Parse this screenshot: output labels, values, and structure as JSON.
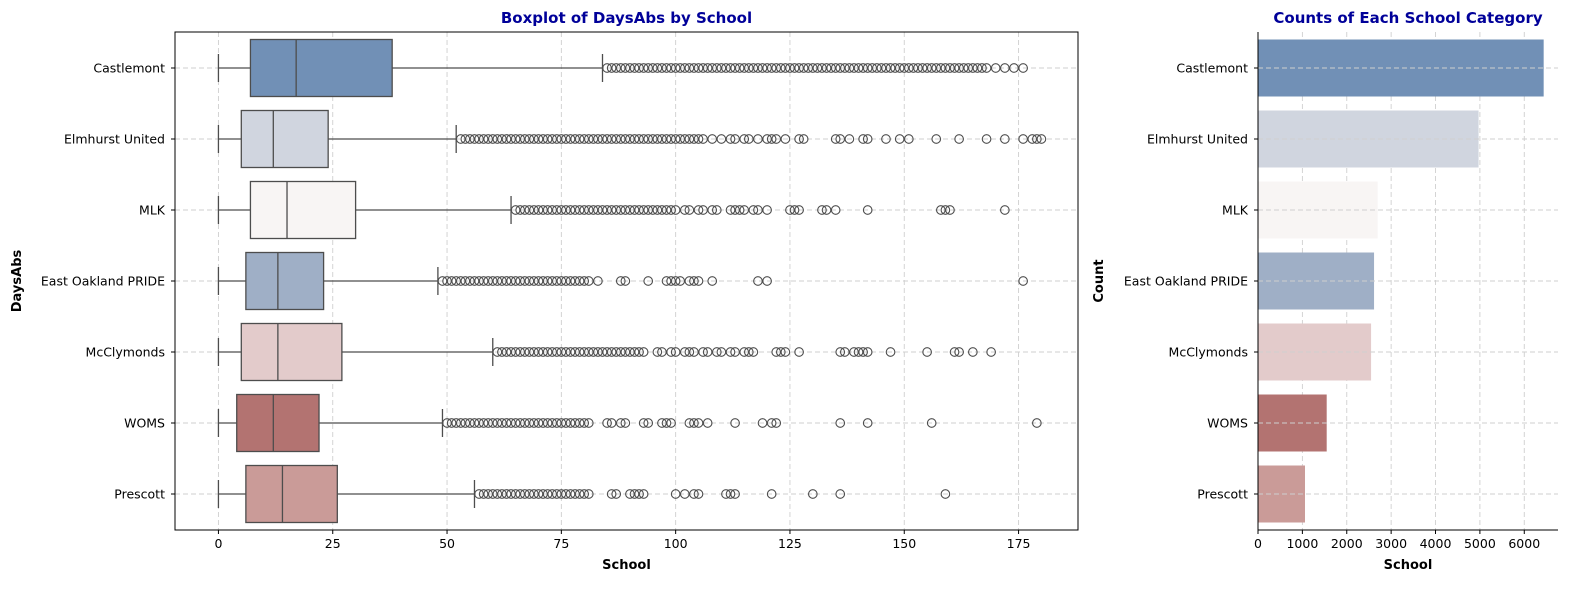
{
  "chart_data": [
    {
      "type": "boxplot",
      "title": "Boxplot of DaysAbs by School",
      "xlabel": "School",
      "ylabel": "DaysAbs",
      "xlim": [
        -9.5,
        188
      ],
      "xticks": [
        0,
        25,
        50,
        75,
        100,
        125,
        150,
        175
      ],
      "grid": true,
      "categories": [
        "Castlemont",
        "Elmhurst United",
        "MLK",
        "East Oakland PRIDE",
        "McClymonds",
        "WOMS",
        "Prescott"
      ],
      "colors": [
        "#7190b6",
        "#d0d5df",
        "#f8f5f4",
        "#9fafc6",
        "#e3cbcb",
        "#b37371",
        "#ca9b98"
      ],
      "boxes": [
        {
          "whislo": 0,
          "q1": 7,
          "med": 17,
          "q3": 38,
          "whishi": 84,
          "outliers_dense": [
            85,
            168
          ],
          "outliers": [
            170,
            172,
            174,
            176
          ]
        },
        {
          "whislo": 0,
          "q1": 5,
          "med": 12,
          "q3": 24,
          "whishi": 52,
          "outliers_dense": [
            53,
            103
          ],
          "outliers": [
            104,
            105,
            106,
            108,
            110,
            112,
            113,
            115,
            116,
            118,
            120,
            121,
            122,
            124,
            127,
            128,
            135,
            136,
            138,
            141,
            142,
            146,
            149,
            151,
            157,
            162,
            168,
            172,
            176,
            178,
            179,
            180
          ]
        },
        {
          "whislo": 0,
          "q1": 7,
          "med": 15,
          "q3": 30,
          "whishi": 64,
          "outliers_dense": [
            65,
            100
          ],
          "outliers": [
            102,
            103,
            105,
            106,
            108,
            109,
            112,
            113,
            114,
            115,
            117,
            118,
            120,
            125,
            126,
            127,
            132,
            133,
            135,
            142,
            158,
            159,
            160,
            172
          ]
        },
        {
          "whislo": 0,
          "q1": 6,
          "med": 13,
          "q3": 23,
          "whishi": 48,
          "outliers_dense": [
            49,
            81
          ],
          "outliers": [
            83,
            88,
            89,
            94,
            98,
            99,
            100,
            101,
            103,
            104,
            105,
            108,
            118,
            120,
            176
          ]
        },
        {
          "whislo": 0,
          "q1": 5,
          "med": 13,
          "q3": 27,
          "whishi": 60,
          "outliers_dense": [
            61,
            93
          ],
          "outliers": [
            96,
            97,
            99,
            100,
            102,
            103,
            104,
            106,
            107,
            109,
            110,
            112,
            113,
            115,
            116,
            117,
            122,
            123,
            124,
            127,
            136,
            137,
            139,
            140,
            141,
            142,
            147,
            155,
            161,
            162,
            165,
            169
          ]
        },
        {
          "whislo": 0,
          "q1": 4,
          "med": 12,
          "q3": 22,
          "whishi": 49,
          "outliers_dense": [
            50,
            81
          ],
          "outliers": [
            85,
            86,
            88,
            89,
            93,
            94,
            97,
            98,
            99,
            103,
            104,
            105,
            107,
            113,
            119,
            121,
            122,
            136,
            142,
            156,
            179
          ]
        },
        {
          "whislo": 0,
          "q1": 6,
          "med": 14,
          "q3": 26,
          "whishi": 56,
          "outliers_dense": [
            57,
            81
          ],
          "outliers": [
            86,
            87,
            90,
            91,
            92,
            93,
            100,
            102,
            104,
            105,
            111,
            112,
            113,
            121,
            130,
            136,
            159
          ]
        }
      ]
    },
    {
      "type": "bar",
      "orientation": "horizontal",
      "title": "Counts of Each School Category",
      "xlabel": "School",
      "ylabel": "Count",
      "xlim": [
        0,
        6760
      ],
      "xticks": [
        0,
        1000,
        2000,
        3000,
        4000,
        5000,
        6000
      ],
      "grid": true,
      "categories": [
        "Castlemont",
        "Elmhurst United",
        "MLK",
        "East Oakland PRIDE",
        "McClymonds",
        "WOMS",
        "Prescott"
      ],
      "values": [
        6437,
        4970,
        2696,
        2615,
        2548,
        1548,
        1059
      ],
      "colors": [
        "#7190b6",
        "#d0d5df",
        "#f8f5f4",
        "#9fafc6",
        "#e3cbcb",
        "#b37371",
        "#ca9b98"
      ]
    }
  ]
}
